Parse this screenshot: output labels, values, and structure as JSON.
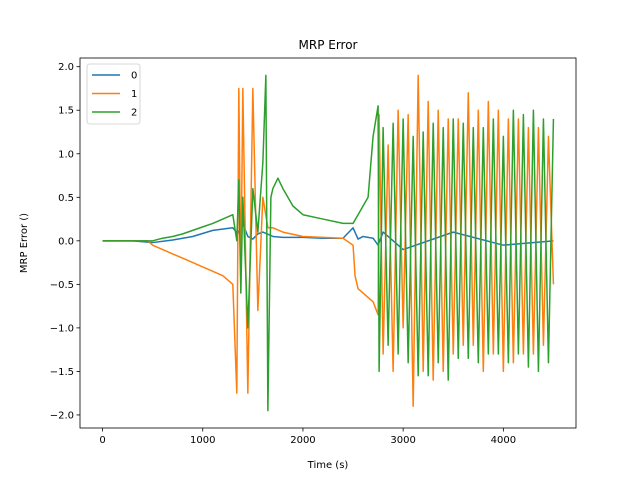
{
  "chart_data": {
    "type": "line",
    "title": "MRP Error",
    "xlabel": "Time (s)",
    "ylabel": "MRP Error ()",
    "xlim": [
      -225,
      4725
    ],
    "ylim": [
      -2.15,
      2.1
    ],
    "xticks": [
      0,
      1000,
      2000,
      3000,
      4000
    ],
    "yticks": [
      -2.0,
      -1.5,
      -1.0,
      -0.5,
      0.0,
      0.5,
      1.0,
      1.5,
      2.0
    ],
    "xtick_labels": [
      "0",
      "1000",
      "2000",
      "3000",
      "4000"
    ],
    "ytick_labels": [
      "−2.0",
      "−1.5",
      "−1.0",
      "−0.5",
      "0.0",
      "0.5",
      "1.0",
      "1.5",
      "2.0"
    ],
    "grid": false,
    "legend_position": "top-left",
    "series": [
      {
        "name": "0",
        "color": "#1f77b4",
        "x": [
          0,
          300,
          500,
          700,
          900,
          1100,
          1300,
          1350,
          1400,
          1450,
          1500,
          1550,
          1600,
          1700,
          1800,
          2000,
          2200,
          2400,
          2500,
          2550,
          2600,
          2700,
          2750,
          2800,
          3000,
          3500,
          4000,
          4500
        ],
        "y": [
          0.0,
          0.0,
          -0.02,
          0.01,
          0.05,
          0.12,
          0.15,
          0.08,
          0.2,
          0.05,
          0.02,
          0.08,
          0.1,
          0.05,
          0.04,
          0.04,
          0.03,
          0.03,
          0.15,
          0.02,
          0.05,
          0.03,
          -0.05,
          0.1,
          -0.1,
          0.1,
          -0.05,
          0.0
        ]
      },
      {
        "name": "1",
        "color": "#ff7f0e",
        "x": [
          0,
          300,
          450,
          500,
          600,
          700,
          800,
          900,
          1000,
          1100,
          1200,
          1300,
          1340,
          1360,
          1380,
          1400,
          1450,
          1500,
          1550,
          1600,
          1650,
          1700,
          1800,
          2000,
          2200,
          2400,
          2500,
          2520,
          2550,
          2600,
          2650,
          2700,
          2750,
          2760,
          2800,
          2850,
          2900,
          2950,
          3000,
          3050,
          3100,
          3150,
          3200,
          3250,
          3300,
          3350,
          3400,
          3450,
          3500,
          3550,
          3600,
          3650,
          3700,
          3750,
          3800,
          3850,
          3900,
          3950,
          4000,
          4050,
          4100,
          4150,
          4200,
          4250,
          4300,
          4350,
          4400,
          4450,
          4500
        ],
        "y": [
          0.0,
          0.0,
          0.0,
          -0.05,
          -0.1,
          -0.15,
          -0.2,
          -0.25,
          -0.3,
          -0.35,
          -0.4,
          -0.5,
          -1.75,
          1.75,
          -0.5,
          1.75,
          -1.75,
          1.75,
          -0.8,
          0.5,
          0.15,
          0.15,
          0.1,
          0.05,
          0.04,
          0.03,
          -0.05,
          -0.4,
          -0.55,
          -0.6,
          -0.65,
          -0.7,
          -0.85,
          1.45,
          -1.3,
          1.1,
          -1.5,
          1.5,
          -1.0,
          1.45,
          -1.9,
          1.9,
          -1.5,
          1.6,
          -1.6,
          1.5,
          -1.5,
          1.4,
          -1.3,
          1.4,
          -1.2,
          1.7,
          -1.2,
          1.5,
          -1.5,
          1.6,
          -1.3,
          1.5,
          -1.5,
          1.4,
          -1.4,
          1.4,
          -1.3,
          1.3,
          -1.3,
          1.3,
          -1.2,
          1.2,
          -0.5
        ]
      },
      {
        "name": "2",
        "color": "#2ca02c",
        "x": [
          0,
          300,
          500,
          600,
          700,
          800,
          900,
          1000,
          1100,
          1200,
          1300,
          1340,
          1360,
          1380,
          1400,
          1450,
          1500,
          1550,
          1600,
          1630,
          1650,
          1680,
          1700,
          1750,
          1800,
          1900,
          2000,
          2200,
          2400,
          2500,
          2550,
          2600,
          2650,
          2700,
          2750,
          2760,
          2800,
          2850,
          2900,
          2950,
          3000,
          3050,
          3100,
          3150,
          3200,
          3250,
          3300,
          3350,
          3400,
          3450,
          3500,
          3550,
          3600,
          3650,
          3700,
          3750,
          3800,
          3850,
          3900,
          3950,
          4000,
          4050,
          4100,
          4150,
          4200,
          4250,
          4300,
          4350,
          4400,
          4450,
          4500
        ],
        "y": [
          0.0,
          0.0,
          0.0,
          0.03,
          0.05,
          0.08,
          0.12,
          0.16,
          0.2,
          0.25,
          0.3,
          0.0,
          0.7,
          -0.6,
          0.5,
          -1.0,
          0.6,
          0.1,
          0.9,
          1.9,
          -1.95,
          0.5,
          0.6,
          0.72,
          0.6,
          0.4,
          0.3,
          0.25,
          0.2,
          0.2,
          0.3,
          0.4,
          0.5,
          1.2,
          1.55,
          -1.5,
          1.3,
          -1.2,
          1.35,
          -1.3,
          1.4,
          -1.4,
          1.2,
          -1.55,
          1.25,
          -1.55,
          1.35,
          -1.4,
          1.3,
          -1.6,
          1.4,
          -1.35,
          1.35,
          -1.35,
          1.3,
          -1.4,
          1.3,
          -1.3,
          1.4,
          -1.3,
          1.2,
          -1.4,
          1.5,
          -1.3,
          1.45,
          -1.45,
          1.5,
          -1.5,
          1.4,
          -1.4,
          1.4
        ]
      }
    ]
  }
}
